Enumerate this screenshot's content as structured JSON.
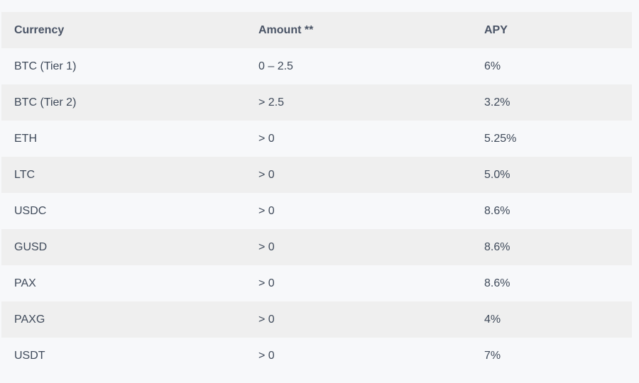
{
  "table": {
    "headers": [
      "Currency",
      "Amount **",
      "APY"
    ],
    "rows": [
      [
        "BTC (Tier 1)",
        "0 – 2.5",
        "6%"
      ],
      [
        "BTC (Tier 2)",
        "> 2.5",
        "3.2%"
      ],
      [
        "ETH",
        "> 0",
        "5.25%"
      ],
      [
        "LTC",
        "> 0",
        "5.0%"
      ],
      [
        "USDC",
        "> 0",
        "8.6%"
      ],
      [
        "GUSD",
        "> 0",
        "8.6%"
      ],
      [
        "PAX",
        "> 0",
        "8.6%"
      ],
      [
        "PAXG",
        "> 0",
        "4%"
      ],
      [
        "USDT",
        "> 0",
        "7%"
      ]
    ]
  }
}
